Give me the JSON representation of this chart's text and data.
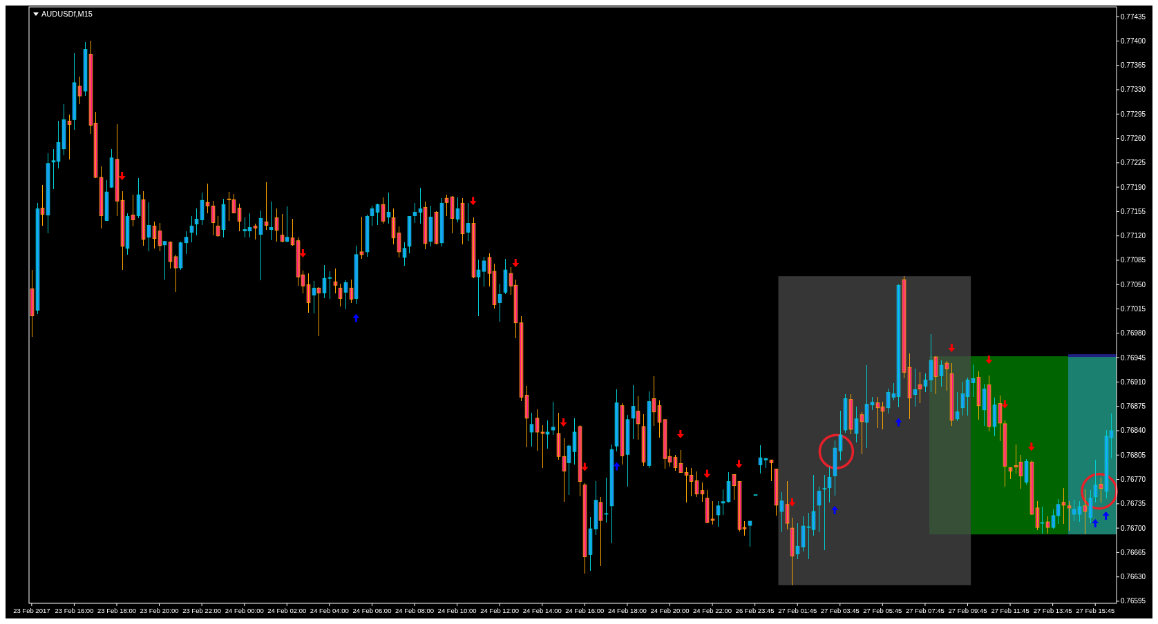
{
  "chart_data": {
    "type": "candlestick",
    "title": "AUDUSDf,M15",
    "categories": [
      "23 Feb 2017",
      null,
      null,
      null,
      null,
      null,
      null,
      null,
      "23 Feb 16:00",
      null,
      null,
      null,
      null,
      null,
      null,
      null,
      "23 Feb 18:00",
      null,
      null,
      null,
      null,
      null,
      null,
      null,
      "23 Feb 20:00",
      null,
      null,
      null,
      null,
      null,
      null,
      null,
      "23 Feb 22:00",
      null,
      null,
      null,
      null,
      null,
      null,
      null,
      "24 Feb 00:00",
      null,
      null,
      null,
      null,
      null,
      null,
      null,
      "24 Feb 02:00",
      null,
      null,
      null,
      null,
      null,
      null,
      null,
      "24 Feb 04:00",
      null,
      null,
      null,
      null,
      null,
      null,
      null,
      "24 Feb 06:00",
      null,
      null,
      null,
      null,
      null,
      null,
      null,
      "24 Feb 08:00",
      null,
      null,
      null,
      null,
      null,
      null,
      null,
      "24 Feb 10:00",
      null,
      null,
      null,
      null,
      null,
      null,
      null,
      "24 Feb 12:00",
      null,
      null,
      null,
      null,
      null,
      null,
      null,
      "24 Feb 14:00",
      null,
      null,
      null,
      null,
      null,
      null,
      null,
      "24 Feb 16:00",
      null,
      null,
      null,
      null,
      null,
      null,
      null,
      "24 Feb 18:00",
      null,
      null,
      null,
      null,
      null,
      null,
      null,
      "24 Feb 20:00",
      null,
      null,
      null,
      null,
      null,
      null,
      null,
      "24 Feb 22:00",
      null,
      null,
      null,
      null,
      null,
      null,
      null,
      "26 Feb 23:45",
      null,
      null,
      null,
      null,
      null,
      null,
      null,
      "27 Feb 01:45",
      null,
      null,
      null,
      null,
      null,
      null,
      null,
      "27 Feb 03:45",
      null,
      null,
      null,
      null,
      null,
      null,
      null,
      "27 Feb 05:45",
      null,
      null,
      null,
      null,
      null,
      null,
      null,
      "27 Feb 07:45",
      null,
      null,
      null,
      null,
      null,
      null,
      null,
      "27 Feb 09:45",
      null,
      null,
      null,
      null,
      null,
      null,
      null,
      "27 Feb 11:45",
      null,
      null,
      null,
      null,
      null,
      null,
      null,
      "27 Feb 13:45",
      null,
      null,
      null,
      null,
      null,
      null,
      null,
      "27 Feb 15:45",
      null,
      null,
      null
    ],
    "ohlc": [
      [
        0.77044,
        0.77071,
        0.76975,
        0.77005
      ],
      [
        0.77013,
        0.77167,
        0.77008,
        0.77159
      ],
      [
        0.7716,
        0.77193,
        0.77135,
        0.77151
      ],
      [
        0.7715,
        0.77239,
        0.77124,
        0.77224
      ],
      [
        0.77226,
        0.77245,
        0.77187,
        0.77228
      ],
      [
        0.77227,
        0.77285,
        0.77217,
        0.77254
      ],
      [
        0.77245,
        0.77309,
        0.77236,
        0.77287
      ],
      [
        0.77285,
        0.77294,
        0.7723,
        0.7728
      ],
      [
        0.77287,
        0.77383,
        0.77272,
        0.7734
      ],
      [
        0.77335,
        0.77349,
        0.77309,
        0.77321
      ],
      [
        0.77328,
        0.77398,
        0.77321,
        0.77388
      ],
      [
        0.77381,
        0.774,
        0.77266,
        0.77279
      ],
      [
        0.77282,
        0.77298,
        0.77203,
        0.77204
      ],
      [
        0.77204,
        0.7722,
        0.77131,
        0.77149
      ],
      [
        0.77142,
        0.772,
        0.77142,
        0.77183
      ],
      [
        0.7719,
        0.77245,
        0.77189,
        0.77232
      ],
      [
        0.7723,
        0.7728,
        0.77148,
        0.7717
      ],
      [
        0.77171,
        0.77184,
        0.77071,
        0.77105
      ],
      [
        0.77102,
        0.77152,
        0.77093,
        0.77148
      ],
      [
        0.7715,
        0.77179,
        0.77134,
        0.77143
      ],
      [
        0.77149,
        0.77203,
        0.77145,
        0.77179
      ],
      [
        0.77172,
        0.77184,
        0.77106,
        0.77115
      ],
      [
        0.77118,
        0.77168,
        0.77098,
        0.77135
      ],
      [
        0.77134,
        0.77141,
        0.77102,
        0.77116
      ],
      [
        0.77127,
        0.77139,
        0.77098,
        0.77106
      ],
      [
        0.77107,
        0.77113,
        0.77057,
        0.77112
      ],
      [
        0.77111,
        0.77112,
        0.77073,
        0.77083
      ],
      [
        0.7709,
        0.77093,
        0.77039,
        0.77074
      ],
      [
        0.77074,
        0.77112,
        0.77071,
        0.7711
      ],
      [
        0.7711,
        0.77127,
        0.77094,
        0.77118
      ],
      [
        0.77125,
        0.77148,
        0.77111,
        0.77134
      ],
      [
        0.77137,
        0.77159,
        0.77121,
        0.77144
      ],
      [
        0.77143,
        0.77182,
        0.77136,
        0.77171
      ],
      [
        0.77168,
        0.77195,
        0.77152,
        0.77163
      ],
      [
        0.77163,
        0.7717,
        0.77121,
        0.77139
      ],
      [
        0.77134,
        0.77148,
        0.77119,
        0.7712
      ],
      [
        0.77129,
        0.77173,
        0.77118,
        0.77165
      ],
      [
        0.77173,
        0.77183,
        0.77142,
        0.77172
      ],
      [
        0.77172,
        0.7718,
        0.77152,
        0.77153
      ],
      [
        0.7716,
        0.77166,
        0.77127,
        0.77141
      ],
      [
        0.77127,
        0.77146,
        0.77118,
        0.77129
      ],
      [
        0.77127,
        0.77152,
        0.77118,
        0.77132
      ],
      [
        0.77134,
        0.77138,
        0.77115,
        0.77131
      ],
      [
        0.77122,
        0.77156,
        0.77056,
        0.77145
      ],
      [
        0.7714,
        0.77197,
        0.77129,
        0.77135
      ],
      [
        0.77129,
        0.77169,
        0.77114,
        0.77132
      ],
      [
        0.77146,
        0.77159,
        0.77112,
        0.77128
      ],
      [
        0.77121,
        0.77151,
        0.77111,
        0.77112
      ],
      [
        0.77112,
        0.77162,
        0.77111,
        0.77118
      ],
      [
        0.77117,
        0.77144,
        0.77106,
        0.77107
      ],
      [
        0.77113,
        0.77118,
        0.77048,
        0.77061
      ],
      [
        0.77064,
        0.7707,
        0.77037,
        0.77048
      ],
      [
        0.7705,
        0.77066,
        0.7701,
        0.77024
      ],
      [
        0.77035,
        0.77055,
        0.77009,
        0.77045
      ],
      [
        0.77045,
        0.77046,
        0.76976,
        0.77038
      ],
      [
        0.77038,
        0.77078,
        0.7703,
        0.77059
      ],
      [
        0.77059,
        0.77069,
        0.77029,
        0.7706
      ],
      [
        0.77054,
        0.77073,
        0.77037,
        0.77049
      ],
      [
        0.77045,
        0.77051,
        0.77019,
        0.7703
      ],
      [
        0.77039,
        0.77056,
        0.77015,
        0.77053
      ],
      [
        0.77045,
        0.77057,
        0.77023,
        0.77029
      ],
      [
        0.7703,
        0.77106,
        0.77022,
        0.77093
      ],
      [
        0.77097,
        0.77147,
        0.77087,
        0.77093
      ],
      [
        0.77097,
        0.7715,
        0.7709,
        0.77148
      ],
      [
        0.77149,
        0.77163,
        0.77135,
        0.77159
      ],
      [
        0.77154,
        0.77166,
        0.77136,
        0.77165
      ],
      [
        0.77165,
        0.77175,
        0.77138,
        0.77141
      ],
      [
        0.77147,
        0.77182,
        0.77138,
        0.77154
      ],
      [
        0.77146,
        0.77159,
        0.77108,
        0.77117
      ],
      [
        0.77124,
        0.77134,
        0.77089,
        0.77097
      ],
      [
        0.77089,
        0.77111,
        0.77077,
        0.77102
      ],
      [
        0.77105,
        0.77148,
        0.77095,
        0.77148
      ],
      [
        0.77149,
        0.77167,
        0.77139,
        0.77154
      ],
      [
        0.77154,
        0.77189,
        0.77138,
        0.77159
      ],
      [
        0.77161,
        0.77169,
        0.77101,
        0.77109
      ],
      [
        0.77112,
        0.77163,
        0.77105,
        0.77147
      ],
      [
        0.77154,
        0.77155,
        0.77108,
        0.77109
      ],
      [
        0.7711,
        0.77174,
        0.77105,
        0.77167
      ],
      [
        0.77174,
        0.77179,
        0.77148,
        0.77168
      ],
      [
        0.77176,
        0.77177,
        0.77124,
        0.77145
      ],
      [
        0.77144,
        0.77175,
        0.7714,
        0.77159
      ],
      [
        0.77167,
        0.77174,
        0.77108,
        0.77123
      ],
      [
        0.77125,
        0.77167,
        0.77113,
        0.77138
      ],
      [
        0.77138,
        0.77146,
        0.77059,
        0.77061
      ],
      [
        0.77061,
        0.77086,
        0.77005,
        0.77071
      ],
      [
        0.77069,
        0.7709,
        0.77047,
        0.77084
      ],
      [
        0.77089,
        0.77095,
        0.77047,
        0.77066
      ],
      [
        0.77069,
        0.7708,
        0.77016,
        0.77021
      ],
      [
        0.77024,
        0.77051,
        0.76997,
        0.77036
      ],
      [
        0.77039,
        0.77087,
        0.77036,
        0.77071
      ],
      [
        0.77066,
        0.77075,
        0.77035,
        0.77048
      ],
      [
        0.77049,
        0.77057,
        0.76973,
        0.76995
      ],
      [
        0.76995,
        0.77005,
        0.76883,
        0.76888
      ],
      [
        0.76891,
        0.76904,
        0.76816,
        0.76858
      ],
      [
        0.76838,
        0.76866,
        0.76817,
        0.76849
      ],
      [
        0.76858,
        0.76871,
        0.76811,
        0.76838
      ],
      [
        0.76838,
        0.76848,
        0.76786,
        0.76836
      ],
      [
        0.76835,
        0.76855,
        0.76814,
        0.76838
      ],
      [
        0.76841,
        0.76882,
        0.76834,
        0.76845
      ],
      [
        0.76836,
        0.76866,
        0.76798,
        0.76803
      ],
      [
        0.76803,
        0.76829,
        0.76738,
        0.76782
      ],
      [
        0.76794,
        0.7682,
        0.76748,
        0.76818
      ],
      [
        0.7681,
        0.76858,
        0.76791,
        0.76838
      ],
      [
        0.76846,
        0.76848,
        0.76746,
        0.76767
      ],
      [
        0.76762,
        0.76765,
        0.76635,
        0.76659
      ],
      [
        0.76662,
        0.76716,
        0.76639,
        0.76699
      ],
      [
        0.76699,
        0.76768,
        0.7669,
        0.7674
      ],
      [
        0.76737,
        0.76745,
        0.76646,
        0.76711
      ],
      [
        0.7672,
        0.76773,
        0.76708,
        0.76721
      ],
      [
        0.76732,
        0.7682,
        0.76678,
        0.76813
      ],
      [
        0.76818,
        0.76899,
        0.7681,
        0.7688
      ],
      [
        0.76876,
        0.7688,
        0.76791,
        0.76804
      ],
      [
        0.76806,
        0.76863,
        0.7676,
        0.76856
      ],
      [
        0.76858,
        0.76905,
        0.76828,
        0.76875
      ],
      [
        0.76868,
        0.7689,
        0.76827,
        0.7685
      ],
      [
        0.76846,
        0.76864,
        0.76789,
        0.76795
      ],
      [
        0.7679,
        0.76897,
        0.76786,
        0.76882
      ],
      [
        0.76886,
        0.76918,
        0.76847,
        0.76867
      ],
      [
        0.76876,
        0.76884,
        0.7683,
        0.76852
      ],
      [
        0.76856,
        0.76856,
        0.76785,
        0.768
      ],
      [
        0.76803,
        0.76814,
        0.76788,
        0.76795
      ],
      [
        0.76802,
        0.76805,
        0.76782,
        0.76787
      ],
      [
        0.76793,
        0.76812,
        0.76779,
        0.7678
      ],
      [
        0.7678,
        0.76787,
        0.76737,
        0.76776
      ],
      [
        0.76776,
        0.76786,
        0.76746,
        0.76767
      ],
      [
        0.76768,
        0.76781,
        0.76745,
        0.76749
      ],
      [
        0.76754,
        0.76766,
        0.76738,
        0.76749
      ],
      [
        0.76743,
        0.76755,
        0.76707,
        0.76708
      ],
      [
        0.76713,
        0.76739,
        0.76705,
        0.76711
      ],
      [
        0.76719,
        0.76739,
        0.76702,
        0.76732
      ],
      [
        0.76736,
        0.76756,
        0.76719,
        0.76738
      ],
      [
        0.76738,
        0.7678,
        0.76737,
        0.76767
      ],
      [
        0.76777,
        0.76777,
        0.76741,
        0.76761
      ],
      [
        0.76767,
        0.76768,
        0.76695,
        0.76698
      ],
      [
        0.76701,
        0.7671,
        0.76689,
        0.76699
      ],
      [
        0.76704,
        0.7671,
        0.76673,
        0.7671
      ],
      [
        0.76748,
        0.76748,
        0.76748,
        0.76748
      ],
      [
        0.76791,
        0.76819,
        0.76778,
        0.76801
      ],
      [
        0.76798,
        0.76801,
        0.76786,
        0.768
      ],
      [
        0.76798,
        0.76798,
        0.76768,
        0.76794
      ],
      [
        0.76785,
        0.76785,
        0.76718,
        0.76733
      ],
      [
        0.76724,
        0.76752,
        0.76694,
        0.76739
      ],
      [
        0.76734,
        0.76768,
        0.76698,
        0.76707
      ],
      [
        0.767,
        0.76715,
        0.76618,
        0.7666
      ],
      [
        0.76663,
        0.76707,
        0.76655,
        0.76674
      ],
      [
        0.76673,
        0.76717,
        0.76666,
        0.76703
      ],
      [
        0.76701,
        0.76722,
        0.76655,
        0.76702
      ],
      [
        0.76698,
        0.76776,
        0.76689,
        0.76724
      ],
      [
        0.76733,
        0.7676,
        0.76694,
        0.76753
      ],
      [
        0.76756,
        0.76776,
        0.76668,
        0.76757
      ],
      [
        0.76758,
        0.76788,
        0.76737,
        0.76773
      ],
      [
        0.76775,
        0.76826,
        0.76747,
        0.76815
      ],
      [
        0.76811,
        0.76869,
        0.76797,
        0.76834
      ],
      [
        0.76841,
        0.76893,
        0.76837,
        0.76886
      ],
      [
        0.76885,
        0.76893,
        0.76835,
        0.76842
      ],
      [
        0.76836,
        0.76875,
        0.76823,
        0.76857
      ],
      [
        0.76863,
        0.76867,
        0.76806,
        0.76853
      ],
      [
        0.76852,
        0.76934,
        0.76815,
        0.76878
      ],
      [
        0.76877,
        0.76889,
        0.7687,
        0.76881
      ],
      [
        0.7688,
        0.76889,
        0.76844,
        0.76873
      ],
      [
        0.76874,
        0.76882,
        0.76842,
        0.76868
      ],
      [
        0.76873,
        0.769,
        0.76865,
        0.76895
      ],
      [
        0.76888,
        0.76908,
        0.76884,
        0.76893
      ],
      [
        0.76889,
        0.7705,
        0.76874,
        0.77049
      ],
      [
        0.77057,
        0.77062,
        0.76915,
        0.76924
      ],
      [
        0.76931,
        0.76951,
        0.76857,
        0.76887
      ],
      [
        0.76892,
        0.76929,
        0.76875,
        0.76899
      ],
      [
        0.76906,
        0.76924,
        0.7688,
        0.769
      ],
      [
        0.76904,
        0.76922,
        0.76896,
        0.76913
      ],
      [
        0.76913,
        0.76979,
        0.76896,
        0.76941
      ],
      [
        0.76946,
        0.76947,
        0.76893,
        0.76918
      ],
      [
        0.76919,
        0.76941,
        0.76903,
        0.76934
      ],
      [
        0.76937,
        0.7694,
        0.76898,
        0.76929
      ],
      [
        0.76922,
        0.76937,
        0.76847,
        0.76855
      ],
      [
        0.76857,
        0.76896,
        0.76854,
        0.76867
      ],
      [
        0.76873,
        0.7691,
        0.76862,
        0.76893
      ],
      [
        0.76889,
        0.76916,
        0.76862,
        0.76913
      ],
      [
        0.76909,
        0.76935,
        0.76889,
        0.76915
      ],
      [
        0.76917,
        0.76925,
        0.76856,
        0.76876
      ],
      [
        0.7687,
        0.76907,
        0.76847,
        0.769
      ],
      [
        0.76906,
        0.76919,
        0.76839,
        0.76846
      ],
      [
        0.76846,
        0.76888,
        0.76832,
        0.76877
      ],
      [
        0.76879,
        0.76891,
        0.76825,
        0.76851
      ],
      [
        0.7685,
        0.76855,
        0.7676,
        0.76789
      ],
      [
        0.76787,
        0.76787,
        0.76771,
        0.76782
      ],
      [
        0.7679,
        0.7682,
        0.76778,
        0.76788
      ],
      [
        0.76795,
        0.76805,
        0.76757,
        0.76775
      ],
      [
        0.76766,
        0.76799,
        0.76763,
        0.76796
      ],
      [
        0.76795,
        0.76797,
        0.76719,
        0.7672
      ],
      [
        0.76729,
        0.76739,
        0.76697,
        0.76701
      ],
      [
        0.76707,
        0.76731,
        0.76692,
        0.76708
      ],
      [
        0.76709,
        0.76717,
        0.76692,
        0.76701
      ],
      [
        0.76701,
        0.76727,
        0.76699,
        0.76718
      ],
      [
        0.76718,
        0.76742,
        0.76706,
        0.76734
      ],
      [
        0.76737,
        0.76758,
        0.76706,
        0.76733
      ],
      [
        0.76732,
        0.76739,
        0.76696,
        0.76729
      ],
      [
        0.7672,
        0.76741,
        0.7671,
        0.76727
      ],
      [
        0.7672,
        0.76739,
        0.76709,
        0.76731
      ],
      [
        0.76732,
        0.76756,
        0.76691,
        0.76724
      ],
      [
        0.76715,
        0.76755,
        0.76707,
        0.76743
      ],
      [
        0.76745,
        0.76798,
        0.76737,
        0.76762
      ],
      [
        0.76763,
        0.76773,
        0.76737,
        0.76757
      ],
      [
        0.76753,
        0.76841,
        0.76743,
        0.76832
      ],
      [
        0.7683,
        0.76865,
        0.768,
        0.7684
      ]
    ],
    "ylim": [
      0.76592,
      0.77449
    ],
    "yticks": [
      0.76595,
      {
        "value": 0.7663,
        "label": "0.76630"
      },
      0.76665,
      {
        "value": 0.767,
        "label": "0.76700"
      },
      0.76735,
      {
        "value": 0.7677,
        "label": "0.76770"
      },
      0.76805,
      {
        "value": 0.7684,
        "label": "0.76840"
      },
      0.76875,
      {
        "value": 0.7691,
        "label": "0.76910"
      },
      0.76945,
      {
        "value": 0.7698,
        "label": "0.76980"
      },
      0.77015,
      {
        "value": 0.7705,
        "label": "0.77050"
      },
      0.77085,
      {
        "value": 0.7712,
        "label": "0.77120"
      },
      0.77155,
      {
        "value": 0.7719,
        "label": "0.77190"
      },
      0.77225,
      {
        "value": 0.7726,
        "label": "0.77260"
      },
      0.77295,
      {
        "value": 0.7733,
        "label": "0.77330"
      },
      0.77365,
      {
        "value": 0.774,
        "label": "0.77400"
      },
      0.77435
    ],
    "grid": false
  }
}
